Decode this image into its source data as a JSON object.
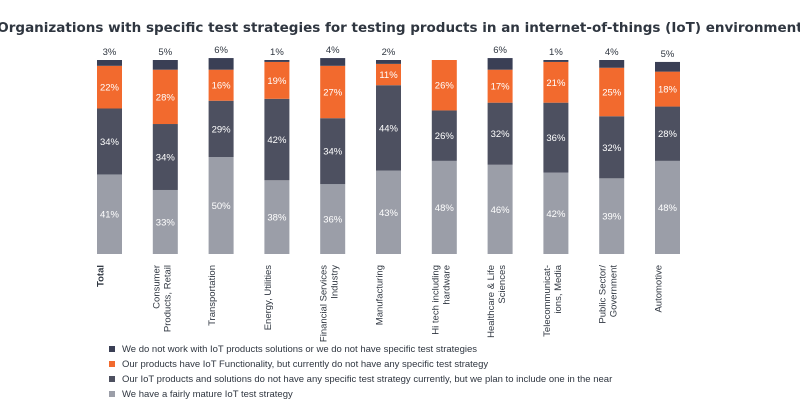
{
  "chart_data": {
    "type": "bar",
    "stacked": true,
    "title": "Organizations with specific test strategies for testing products in an internet-of-things (IoT) environment",
    "categories": [
      {
        "lines": [
          "Total"
        ],
        "bold": true
      },
      {
        "lines": [
          "Consumer",
          "Products, Retail"
        ],
        "bold": false
      },
      {
        "lines": [
          "Transportation"
        ],
        "bold": false
      },
      {
        "lines": [
          "Energy, Utilities"
        ],
        "bold": false
      },
      {
        "lines": [
          "Financial Services",
          "Industry"
        ],
        "bold": false
      },
      {
        "lines": [
          "Manufacturing"
        ],
        "bold": false
      },
      {
        "lines": [
          "Hi tech including",
          "hardware"
        ],
        "bold": false
      },
      {
        "lines": [
          "Healthcare & Life",
          "Sciences"
        ],
        "bold": false
      },
      {
        "lines": [
          "Telecommunicat-",
          "ions, Media"
        ],
        "bold": false
      },
      {
        "lines": [
          "Public Sector/",
          "Government"
        ],
        "bold": false
      },
      {
        "lines": [
          "Automotive"
        ],
        "bold": false
      }
    ],
    "series": [
      {
        "name": "We have a fairly mature IoT test strategy",
        "color": "#9b9ea8",
        "label_color": "#ffffff",
        "values": [
          41,
          33,
          50,
          38,
          36,
          43,
          48,
          46,
          42,
          39,
          48
        ]
      },
      {
        "name": "Our IoT products and solutions do not have any specific test strategy currently, but we plan to include one in the near",
        "color": "#4d5060",
        "label_color": "#ffffff",
        "values": [
          34,
          34,
          29,
          42,
          34,
          44,
          26,
          32,
          36,
          32,
          28
        ]
      },
      {
        "name": "Our products have IoT Functionality, but currently do not have any specific test strategy",
        "color": "#f26a2e",
        "label_color": "#ffffff",
        "values": [
          22,
          28,
          16,
          19,
          27,
          11,
          26,
          17,
          21,
          25,
          18
        ]
      },
      {
        "name": "We do not work with IoT products solutions or we do not have specific test strategies",
        "color": "#3a3f55",
        "label_color": "#2f3640",
        "values": [
          3,
          5,
          6,
          1,
          4,
          2,
          0,
          6,
          1,
          4,
          5
        ]
      }
    ],
    "value_suffix": "%",
    "ylim": [
      0,
      100
    ],
    "grid": false,
    "legend_placement": "bottom-left"
  }
}
